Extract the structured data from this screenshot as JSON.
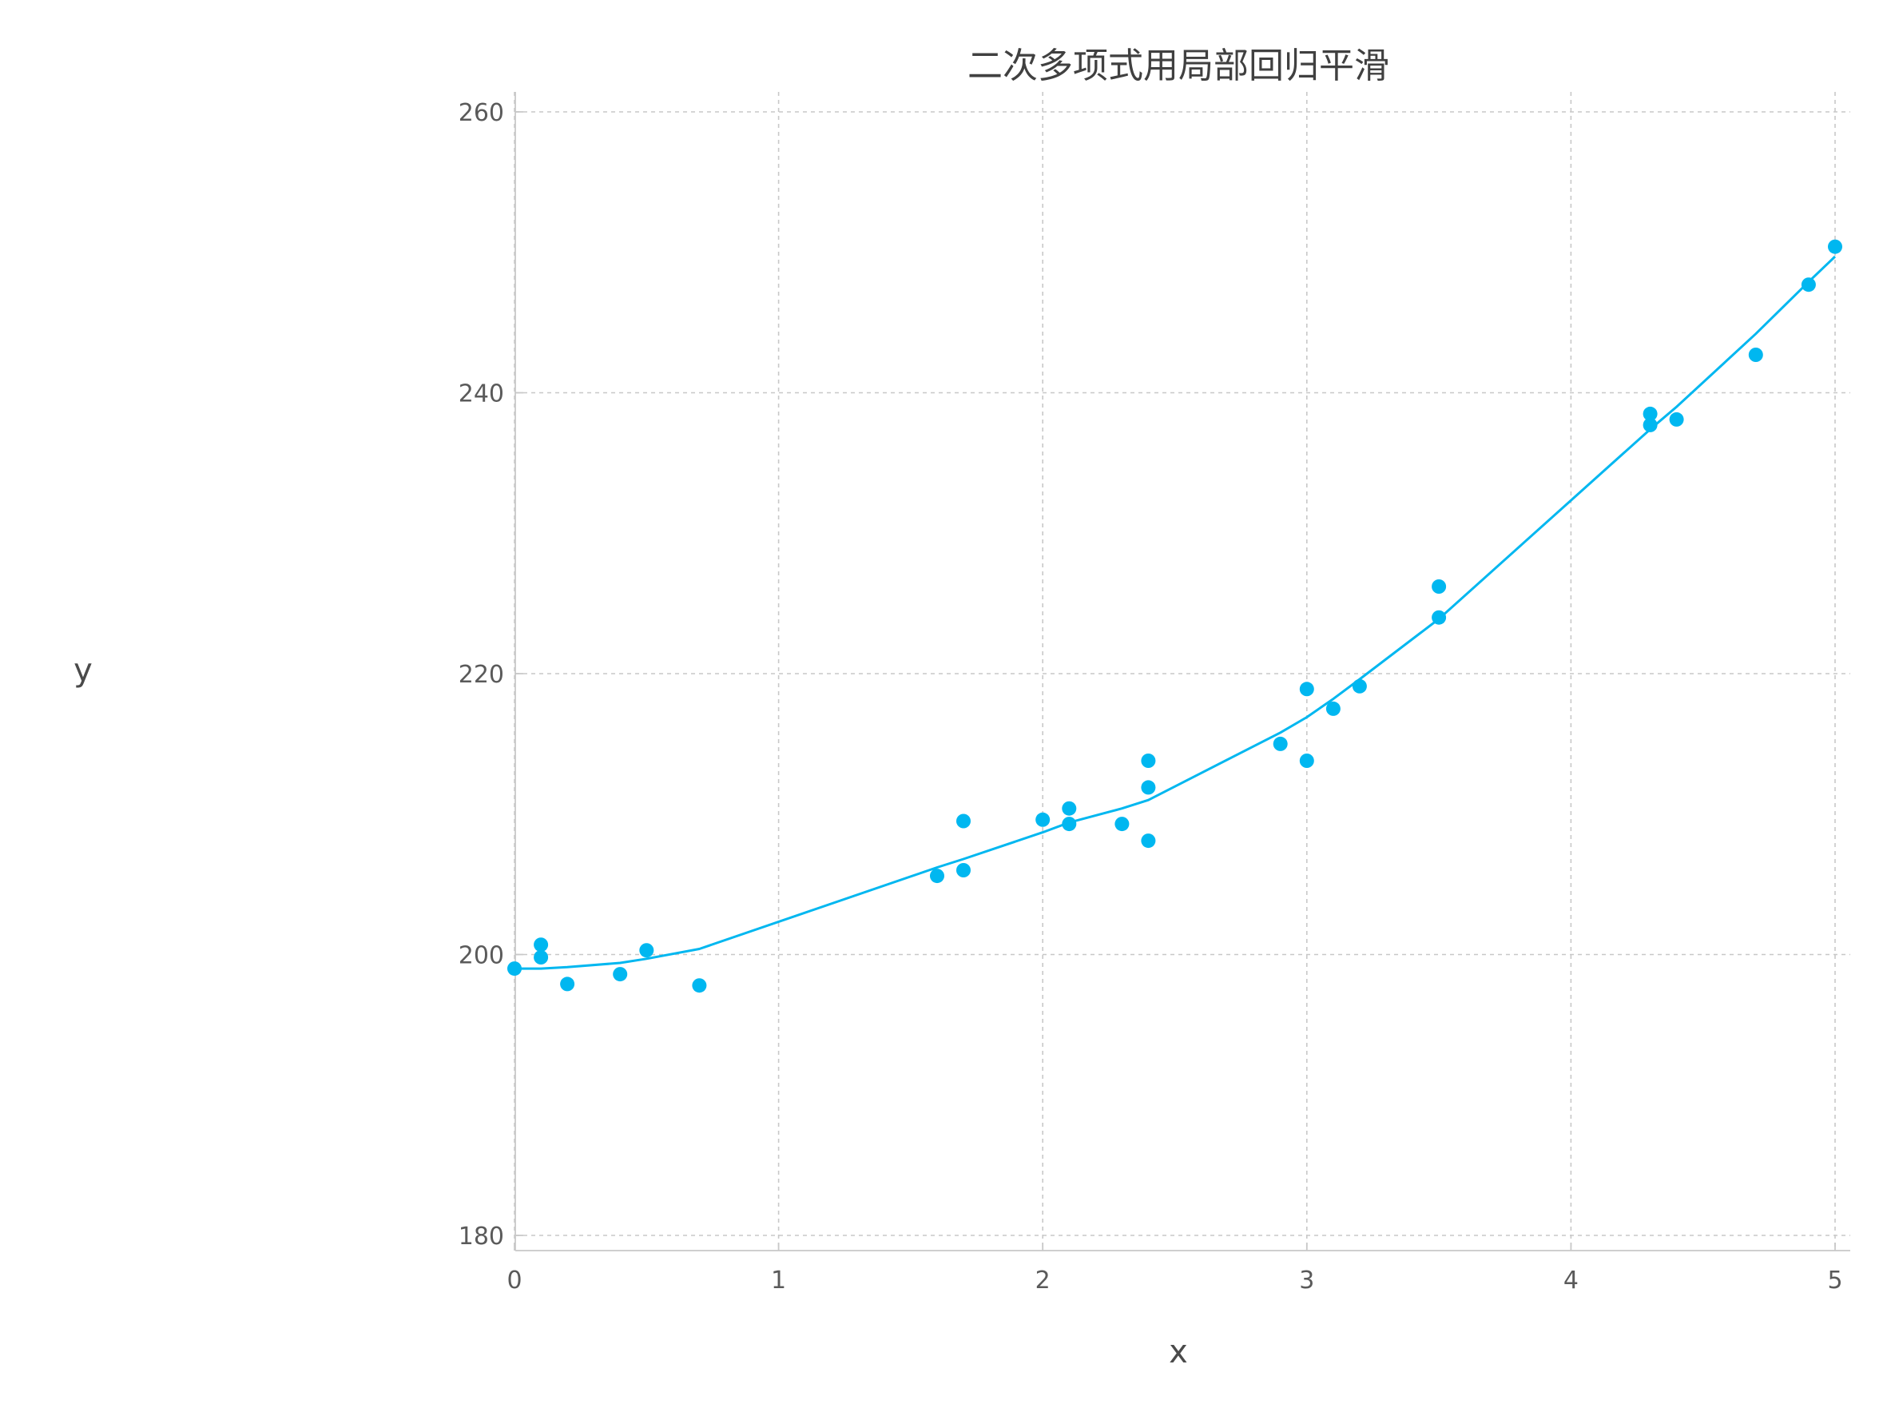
{
  "chart_data": {
    "type": "scatter",
    "title": "二次多项式用局部回归平滑",
    "xlabel": "x",
    "ylabel": "y",
    "xlim": [
      0,
      5
    ],
    "ylim": [
      180,
      260
    ],
    "xticks": [
      0,
      1,
      2,
      3,
      4,
      5
    ],
    "yticks": [
      180,
      200,
      220,
      240,
      260
    ],
    "xtick_labels": [
      "0",
      "1",
      "2",
      "3",
      "4",
      "5"
    ],
    "ytick_labels": [
      "180",
      "200",
      "220",
      "240",
      "260"
    ],
    "grid": true,
    "legend": "none",
    "color": "#00b7f0",
    "points": {
      "x": [
        0.0,
        0.1,
        0.1,
        0.2,
        0.4,
        0.5,
        0.7,
        1.6,
        1.7,
        1.7,
        2.0,
        2.1,
        2.1,
        2.3,
        2.4,
        2.4,
        2.4,
        2.9,
        3.0,
        3.0,
        3.1,
        3.2,
        3.5,
        3.5,
        4.3,
        4.3,
        4.4,
        4.7,
        4.9,
        5.0
      ],
      "y": [
        199.0,
        200.7,
        199.8,
        197.9,
        198.6,
        200.3,
        197.8,
        205.6,
        209.5,
        206.0,
        209.6,
        210.4,
        209.3,
        209.3,
        213.8,
        211.9,
        208.1,
        215.0,
        218.9,
        213.8,
        217.5,
        219.1,
        226.2,
        224.0,
        237.7,
        238.5,
        238.1,
        242.7,
        247.7,
        250.4
      ]
    },
    "smooth": {
      "x": [
        0.0,
        0.1,
        0.2,
        0.4,
        0.5,
        0.7,
        1.6,
        1.7,
        2.0,
        2.1,
        2.3,
        2.4,
        2.9,
        3.0,
        3.1,
        3.2,
        3.5,
        4.3,
        4.4,
        4.7,
        4.9,
        5.0
      ],
      "y": [
        199.0,
        199.0,
        199.1,
        199.4,
        199.7,
        200.4,
        206.2,
        206.8,
        208.7,
        209.4,
        210.4,
        211.0,
        215.8,
        216.9,
        218.2,
        219.6,
        223.9,
        237.4,
        239.0,
        244.2,
        247.9,
        249.7
      ]
    }
  }
}
